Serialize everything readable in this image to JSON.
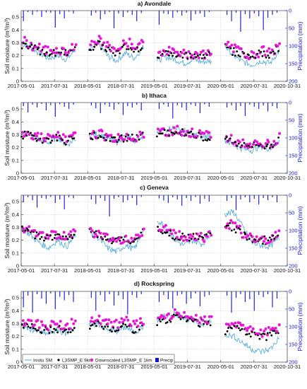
{
  "colors": {
    "insitu": "#4aa7d6",
    "l3smap": "#000000",
    "downscaled": "#e817d6",
    "precip": "#1010d8",
    "grid": "#c8c8c8"
  },
  "legend": {
    "placement": "bottom-left",
    "entries": [
      "Insitu SM",
      "L3SMP_E 9km",
      "Downscaled L3SMP_E 1km",
      "Precip"
    ]
  },
  "chart_data": [
    {
      "type": "line",
      "title": "a) Avondale",
      "ylabel": "Soil moisture (m³/m³)",
      "y2label": "Precipitation (mm)",
      "ylim": [
        0,
        0.55
      ],
      "y2lim": [
        200,
        0
      ],
      "yticks": [
        "0",
        "0.1",
        "0.2",
        "0.3",
        "0.4",
        "0.5"
      ],
      "y2ticks": [
        "0",
        "50",
        "100",
        "150",
        "200"
      ],
      "xticks": [
        "2017-05-01",
        "2017-07-31",
        "2018-05-01",
        "2018-07-31",
        "2019-05-01",
        "2019-07-31",
        "2020-05-01",
        "2020-07-31",
        "2020-10-31"
      ],
      "seasons": [
        {
          "insitu": [
            0.29,
            0.27,
            0.22,
            0.18,
            0.2,
            0.17,
            0.25
          ],
          "l3smap": [
            0.28,
            0.26,
            0.24,
            0.22,
            0.23,
            0.22,
            0.26
          ],
          "downscaled": [
            0.32,
            0.28,
            0.26,
            0.24,
            0.25,
            0.23,
            0.29
          ]
        },
        {
          "insitu": [
            0.24,
            0.3,
            0.2,
            0.16,
            0.22,
            0.18,
            0.27
          ],
          "l3smap": [
            0.26,
            0.29,
            0.25,
            0.22,
            0.27,
            0.24,
            0.29
          ],
          "downscaled": [
            0.29,
            0.32,
            0.27,
            0.24,
            0.31,
            0.27,
            0.33
          ]
        },
        {
          "insitu": [
            0.16,
            0.19,
            0.17,
            0.14,
            0.17,
            0.15,
            0.16
          ],
          "l3smap": [
            0.21,
            0.22,
            0.2,
            0.2,
            0.21,
            0.19,
            0.21
          ],
          "downscaled": [
            0.23,
            0.24,
            0.22,
            0.21,
            0.22,
            0.21,
            0.23
          ]
        },
        {
          "insitu": [
            0.28,
            0.2,
            0.15,
            0.13,
            0.16,
            0.14,
            0.24
          ],
          "l3smap": [
            0.27,
            0.23,
            0.21,
            0.19,
            0.22,
            0.2,
            0.26
          ],
          "downscaled": [
            0.3,
            0.25,
            0.22,
            0.2,
            0.24,
            0.22,
            0.28
          ]
        }
      ],
      "precip_mm": [
        [
          30,
          4,
          12,
          3,
          18,
          5,
          6,
          48,
          10,
          22,
          3,
          8
        ],
        [
          14,
          6,
          25,
          10,
          4,
          50,
          8,
          18,
          5,
          12,
          30,
          7
        ],
        [
          40,
          8,
          10,
          20,
          5,
          14,
          6,
          28,
          10,
          8,
          18,
          4
        ],
        [
          12,
          30,
          6,
          60,
          10,
          22,
          8,
          16,
          55,
          20,
          12,
          6
        ]
      ]
    },
    {
      "type": "line",
      "title": "b) Ithaca",
      "ylabel": "Soil moisture (m³/m³)",
      "y2label": "Precipitation (mm)",
      "ylim": [
        0,
        0.55
      ],
      "y2lim": [
        200,
        0
      ],
      "yticks": [
        "0",
        "0.1",
        "0.2",
        "0.3",
        "0.4",
        "0.5"
      ],
      "y2ticks": [
        "0",
        "50",
        "100",
        "150",
        "200"
      ],
      "xticks": [
        "2017-05-01",
        "2017-07-31",
        "2018-05-01",
        "2018-07-31",
        "2019-05-01",
        "2019-07-31",
        "2020-05-01",
        "2020-07-31",
        "2020-10-31"
      ],
      "seasons": [
        {
          "insitu": [
            0.32,
            0.3,
            0.26,
            0.24,
            0.28,
            0.22,
            0.27
          ],
          "l3smap": [
            0.3,
            0.29,
            0.27,
            0.26,
            0.28,
            0.25,
            0.28
          ],
          "downscaled": [
            0.31,
            0.3,
            0.28,
            0.27,
            0.29,
            0.26,
            0.29
          ]
        },
        {
          "insitu": [
            0.3,
            0.31,
            0.27,
            0.24,
            0.29,
            0.25,
            0.3
          ],
          "l3smap": [
            0.29,
            0.29,
            0.27,
            0.26,
            0.28,
            0.27,
            0.29
          ],
          "downscaled": [
            0.3,
            0.31,
            0.28,
            0.27,
            0.29,
            0.28,
            0.3
          ]
        },
        {
          "insitu": [
            0.32,
            0.34,
            0.36,
            0.33,
            0.3,
            0.28,
            0.3
          ],
          "l3smap": [
            0.3,
            0.31,
            0.33,
            0.31,
            0.3,
            0.28,
            0.29
          ],
          "downscaled": [
            0.31,
            0.32,
            0.34,
            0.32,
            0.31,
            0.29,
            0.3
          ]
        },
        {
          "insitu": [
            0.26,
            0.22,
            0.19,
            0.18,
            0.21,
            0.19,
            0.26
          ],
          "l3smap": [
            0.27,
            0.24,
            0.22,
            0.21,
            0.22,
            0.21,
            0.27
          ],
          "downscaled": [
            0.28,
            0.25,
            0.23,
            0.22,
            0.23,
            0.22,
            0.28
          ]
        }
      ],
      "precip_mm": [
        [
          10,
          28,
          6,
          14,
          4,
          22,
          8,
          40,
          5,
          12,
          18,
          6
        ],
        [
          8,
          16,
          30,
          6,
          12,
          20,
          5,
          35,
          10,
          14,
          6,
          22
        ],
        [
          18,
          6,
          12,
          45,
          8,
          14,
          22,
          6,
          10,
          30,
          5,
          12
        ],
        [
          14,
          8,
          22,
          10,
          38,
          6,
          12,
          18,
          8,
          25,
          10,
          16
        ]
      ]
    },
    {
      "type": "line",
      "title": "c) Geneva",
      "ylabel": "Soil moisture (m³/m³)",
      "y2label": "Precipitation (mm)",
      "ylim": [
        0,
        0.55
      ],
      "y2lim": [
        200,
        0
      ],
      "yticks": [
        "0",
        "0.1",
        "0.2",
        "0.3",
        "0.4",
        "0.5"
      ],
      "y2ticks": [
        "0",
        "50",
        "100",
        "150",
        "200"
      ],
      "xticks": [
        "2017-05-01",
        "2017-07-31",
        "2018-05-01",
        "2018-07-31",
        "2019-05-01",
        "2019-07-31",
        "2020-05-01",
        "2020-07-31",
        "2020-10-31"
      ],
      "seasons": [
        {
          "insitu": [
            0.3,
            0.24,
            0.18,
            0.14,
            0.2,
            0.15,
            0.24
          ],
          "l3smap": [
            0.28,
            0.26,
            0.23,
            0.22,
            0.24,
            0.21,
            0.26
          ],
          "downscaled": [
            0.3,
            0.27,
            0.24,
            0.23,
            0.25,
            0.22,
            0.28
          ]
        },
        {
          "insitu": [
            0.27,
            0.22,
            0.14,
            0.11,
            0.16,
            0.13,
            0.28
          ],
          "l3smap": [
            0.26,
            0.24,
            0.2,
            0.19,
            0.21,
            0.19,
            0.27
          ],
          "downscaled": [
            0.27,
            0.25,
            0.21,
            0.2,
            0.22,
            0.2,
            0.29
          ]
        },
        {
          "insitu": [
            0.36,
            0.3,
            0.2,
            0.16,
            0.2,
            0.17,
            0.26
          ],
          "l3smap": [
            0.3,
            0.27,
            0.23,
            0.22,
            0.23,
            0.21,
            0.26
          ],
          "downscaled": [
            0.31,
            0.28,
            0.24,
            0.23,
            0.24,
            0.22,
            0.27
          ]
        },
        {
          "insitu": [
            0.4,
            0.42,
            0.3,
            0.18,
            0.16,
            0.15,
            0.22
          ],
          "l3smap": [
            0.32,
            0.3,
            0.24,
            0.21,
            0.2,
            0.2,
            0.24
          ],
          "downscaled": [
            0.33,
            0.31,
            0.25,
            0.22,
            0.21,
            0.21,
            0.26
          ]
        }
      ],
      "precip_mm": [
        [
          20,
          6,
          14,
          35,
          8,
          10,
          5,
          22,
          12,
          40,
          6,
          9
        ],
        [
          12,
          25,
          8,
          16,
          60,
          10,
          6,
          20,
          14,
          8,
          28,
          5
        ],
        [
          9,
          15,
          22,
          6,
          12,
          30,
          8,
          16,
          5,
          24,
          10,
          18
        ],
        [
          16,
          8,
          42,
          12,
          6,
          20,
          10,
          26,
          8,
          14,
          6,
          20
        ]
      ]
    },
    {
      "type": "line",
      "title": "d) Rockspring",
      "ylabel": "Soil moisture (m³/m³)",
      "y2label": "Precipitation (mm)",
      "ylim": [
        0,
        0.55
      ],
      "y2lim": [
        200,
        0
      ],
      "yticks": [
        "0",
        "0.1",
        "0.2",
        "0.3",
        "0.4",
        "0.5"
      ],
      "y2ticks": [
        "0",
        "50",
        "100",
        "150",
        "200"
      ],
      "xticks": [
        "2017-05-01",
        "2017-07-31",
        "2018-05-01",
        "2018-07-31",
        "2019-05-01",
        "2019-07-31",
        "2020-05-01",
        "2020-07-31",
        "2020-10-31"
      ],
      "seasons": [
        {
          "insitu": [
            0.28,
            0.26,
            0.23,
            0.22,
            0.25,
            0.22,
            0.27
          ],
          "l3smap": [
            0.28,
            0.27,
            0.25,
            0.24,
            0.26,
            0.24,
            0.28
          ],
          "downscaled": [
            0.32,
            0.31,
            0.29,
            0.28,
            0.3,
            0.28,
            0.33
          ]
        },
        {
          "insitu": [
            0.28,
            0.3,
            0.25,
            0.24,
            0.27,
            0.23,
            0.28
          ],
          "l3smap": [
            0.27,
            0.29,
            0.27,
            0.26,
            0.28,
            0.25,
            0.29
          ],
          "downscaled": [
            0.31,
            0.33,
            0.31,
            0.3,
            0.32,
            0.29,
            0.33
          ]
        },
        {
          "insitu": [
            0.32,
            0.36,
            0.38,
            0.35,
            0.32,
            0.3,
            0.32
          ],
          "l3smap": [
            0.3,
            0.33,
            0.35,
            0.33,
            0.31,
            0.3,
            0.31
          ],
          "downscaled": [
            0.33,
            0.36,
            0.38,
            0.36,
            0.34,
            0.33,
            0.34
          ]
        },
        {
          "insitu": [
            0.22,
            0.2,
            0.15,
            0.1,
            0.08,
            0.1,
            0.19
          ],
          "l3smap": [
            0.24,
            0.27,
            0.24,
            0.21,
            0.19,
            0.2,
            0.25
          ],
          "downscaled": [
            0.27,
            0.31,
            0.28,
            0.25,
            0.23,
            0.24,
            0.29
          ]
        }
      ],
      "precip_mm": [
        [
          45,
          12,
          60,
          8,
          20,
          35,
          6,
          50,
          15,
          25,
          10,
          30
        ],
        [
          18,
          55,
          10,
          28,
          8,
          40,
          12,
          22,
          65,
          10,
          18,
          8
        ],
        [
          30,
          10,
          22,
          48,
          12,
          8,
          35,
          20,
          6,
          42,
          15,
          10
        ],
        [
          12,
          60,
          18,
          8,
          30,
          22,
          55,
          10,
          16,
          8,
          45,
          20
        ]
      ]
    }
  ]
}
